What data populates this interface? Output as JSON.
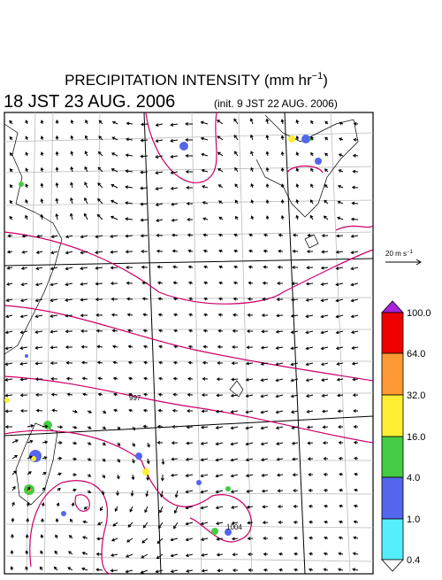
{
  "header": {
    "title_main": "PRECIPITATION INTENSITY (mm hr",
    "title_exp": "−1",
    "title_close": ")",
    "valid_time": "18 JST 23 AUG. 2006",
    "init_time": "(init. 9 JST 22 AUG. 2006)"
  },
  "vector_scale": {
    "label": "20 m s",
    "exp": "−1"
  },
  "colorbar": {
    "labels": [
      "100.0",
      "64.0",
      "32.0",
      "16.0",
      "4.0",
      "1.0",
      "0.4"
    ]
  },
  "contour_labels": [
    "997",
    "1004"
  ]
}
